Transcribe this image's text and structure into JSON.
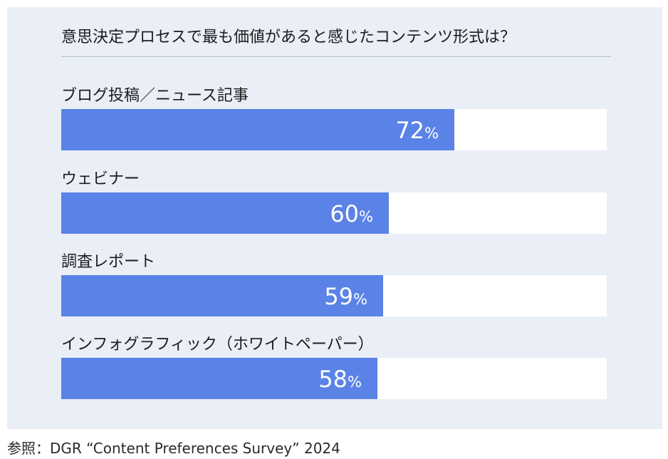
{
  "chart_data": {
    "type": "bar",
    "orientation": "horizontal",
    "title": "意思決定プロセスで最も価値があると感じたコンテンツ形式は？",
    "categories": [
      "ブログ投稿／ニュース記事",
      "ウェビナー",
      "調査レポート",
      "インフォグラフィック（ホワイトペーパー）"
    ],
    "values": [
      72,
      60,
      59,
      58
    ],
    "value_labels": [
      "72",
      "60",
      "59",
      "58"
    ],
    "unit": "%",
    "xlim": [
      0,
      100
    ],
    "xlabel": "",
    "ylabel": "",
    "grid": false,
    "source": "参照：DGR “Content Preferences Survey” 2024"
  },
  "colors": {
    "bar": "#5b82e6",
    "track": "#ffffff",
    "panel": "#e9eef7"
  }
}
